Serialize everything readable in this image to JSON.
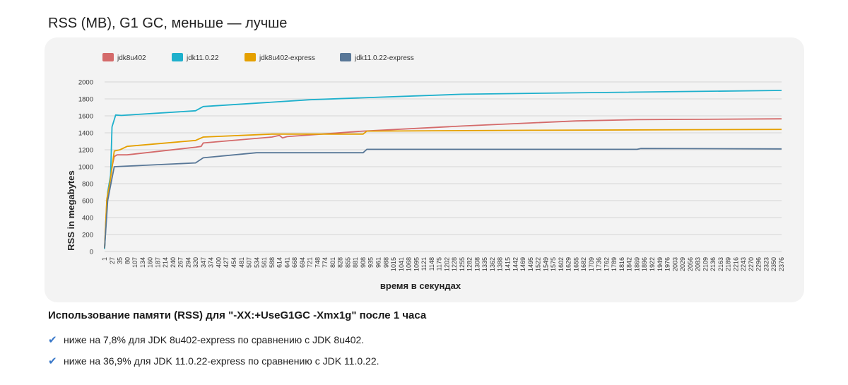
{
  "page": {
    "title": "RSS (MB), G1 GC, меньше — лучше",
    "heading": "Использование памяти (RSS) для \"-XX:+UseG1GC -Xmx1g\" после 1 часа",
    "bullets": [
      {
        "icon": "check-icon",
        "text": "ниже на 7,8% для JDK 8u402-express по сравнению с JDK 8u402."
      },
      {
        "icon": "check-icon",
        "text": "ниже на 36,9% для JDK 11.0.22-express по сравнению с JDK 11.0.22."
      }
    ]
  },
  "chart_data": {
    "type": "line",
    "xlabel": "время в секундах",
    "ylabel": "RSS in megabytes",
    "ylim": [
      0,
      2000
    ],
    "yticks": [
      0,
      200,
      400,
      600,
      800,
      1000,
      1200,
      1400,
      1600,
      1800,
      2000
    ],
    "xlim": [
      1,
      2376
    ],
    "xticks": [
      1,
      27,
      35,
      80,
      107,
      134,
      160,
      187,
      214,
      240,
      267,
      294,
      320,
      347,
      374,
      400,
      427,
      454,
      481,
      507,
      534,
      561,
      588,
      614,
      641,
      668,
      694,
      721,
      748,
      774,
      801,
      828,
      855,
      881,
      908,
      935,
      961,
      988,
      1015,
      1041,
      1068,
      1095,
      1121,
      1148,
      1175,
      1202,
      1228,
      1255,
      1282,
      1308,
      1335,
      1362,
      1388,
      1415,
      1442,
      1469,
      1495,
      1522,
      1549,
      1575,
      1602,
      1629,
      1655,
      1682,
      1709,
      1736,
      1762,
      1789,
      1816,
      1842,
      1869,
      1896,
      1922,
      1949,
      1976,
      2003,
      2029,
      2056,
      2083,
      2109,
      2136,
      2163,
      2189,
      2216,
      2243,
      2270,
      2296,
      2323,
      2350,
      2376
    ],
    "grid": true,
    "legend": "top-left",
    "series": [
      {
        "name": "jdk8u402",
        "color": "#d46a6a",
        "points": [
          [
            1,
            40
          ],
          [
            9,
            600
          ],
          [
            20,
            850
          ],
          [
            27,
            1000
          ],
          [
            35,
            1120
          ],
          [
            45,
            1140
          ],
          [
            80,
            1140
          ],
          [
            320,
            1230
          ],
          [
            340,
            1240
          ],
          [
            347,
            1280
          ],
          [
            588,
            1350
          ],
          [
            614,
            1370
          ],
          [
            625,
            1340
          ],
          [
            641,
            1355
          ],
          [
            908,
            1420
          ],
          [
            1255,
            1480
          ],
          [
            1655,
            1540
          ],
          [
            1869,
            1555
          ],
          [
            2376,
            1565
          ]
        ]
      },
      {
        "name": "jdk11.0.22",
        "color": "#1eb0cc",
        "points": [
          [
            1,
            30
          ],
          [
            12,
            700
          ],
          [
            22,
            900
          ],
          [
            27,
            1470
          ],
          [
            40,
            1610
          ],
          [
            60,
            1605
          ],
          [
            320,
            1660
          ],
          [
            347,
            1710
          ],
          [
            721,
            1790
          ],
          [
            881,
            1810
          ],
          [
            1255,
            1855
          ],
          [
            1602,
            1870
          ],
          [
            2376,
            1900
          ]
        ]
      },
      {
        "name": "jdk8u402-express",
        "color": "#e5a000",
        "points": [
          [
            1,
            40
          ],
          [
            9,
            620
          ],
          [
            20,
            820
          ],
          [
            35,
            1185
          ],
          [
            55,
            1200
          ],
          [
            80,
            1240
          ],
          [
            320,
            1310
          ],
          [
            347,
            1350
          ],
          [
            588,
            1385
          ],
          [
            908,
            1385
          ],
          [
            921,
            1420
          ],
          [
            1500,
            1430
          ],
          [
            2376,
            1440
          ]
        ]
      },
      {
        "name": "jdk11.0.22-express",
        "color": "#587797",
        "points": [
          [
            1,
            40
          ],
          [
            12,
            600
          ],
          [
            22,
            780
          ],
          [
            35,
            1000
          ],
          [
            320,
            1045
          ],
          [
            347,
            1105
          ],
          [
            534,
            1165
          ],
          [
            908,
            1165
          ],
          [
            921,
            1205
          ],
          [
            1869,
            1205
          ],
          [
            1882,
            1215
          ],
          [
            2376,
            1210
          ]
        ]
      }
    ]
  }
}
